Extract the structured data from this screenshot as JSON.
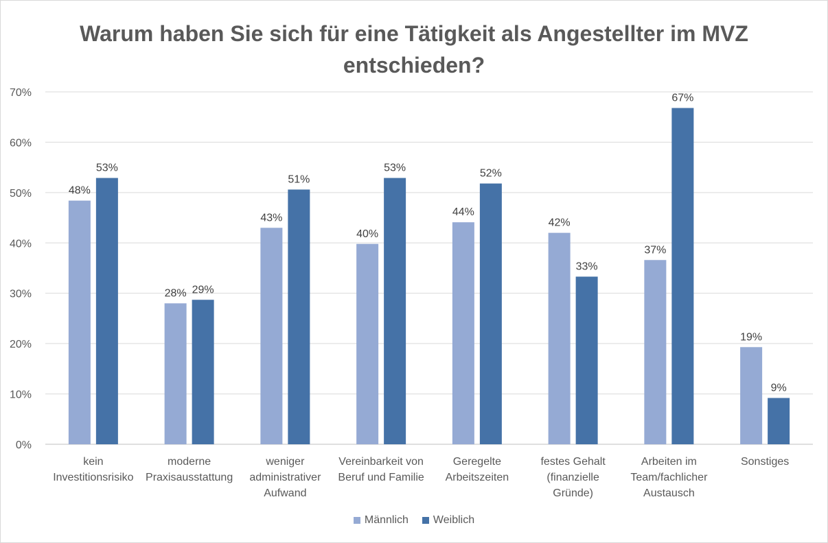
{
  "chart_data": {
    "type": "bar",
    "title": "Warum haben Sie sich für eine Tätigkeit als Angestellter im MVZ entschieden?",
    "categories": [
      [
        "kein",
        "Investitionsrisiko"
      ],
      [
        "moderne",
        "Praxisausstattung"
      ],
      [
        "weniger",
        "administrativer",
        "Aufwand"
      ],
      [
        "Vereinbarkeit von",
        "Beruf und Familie"
      ],
      [
        "Geregelte",
        "Arbeitszeiten"
      ],
      [
        "festes Gehalt",
        "(finanzielle",
        "Gründe)"
      ],
      [
        "Arbeiten im",
        "Team/fachlicher",
        "Austausch"
      ],
      [
        "Sonstiges"
      ]
    ],
    "series": [
      {
        "name": "Männlich",
        "color": "#95aad4",
        "values": [
          48.4,
          28.0,
          43.0,
          39.8,
          44.1,
          42.0,
          36.6,
          19.3
        ],
        "labels": [
          "48%",
          "28%",
          "43%",
          "40%",
          "44%",
          "42%",
          "37%",
          "19%"
        ]
      },
      {
        "name": "Weiblich",
        "color": "#4572a7",
        "values": [
          52.9,
          28.7,
          50.6,
          52.9,
          51.8,
          33.3,
          66.8,
          9.2
        ],
        "labels": [
          "53%",
          "29%",
          "51%",
          "53%",
          "52%",
          "33%",
          "67%",
          "9%"
        ]
      }
    ],
    "ylim": [
      0,
      70
    ],
    "yticks": [
      0,
      10,
      20,
      30,
      40,
      50,
      60,
      70
    ],
    "ytick_labels": [
      "0%",
      "10%",
      "20%",
      "30%",
      "40%",
      "50%",
      "60%",
      "70%"
    ],
    "grid": true,
    "legend_position": "bottom"
  }
}
